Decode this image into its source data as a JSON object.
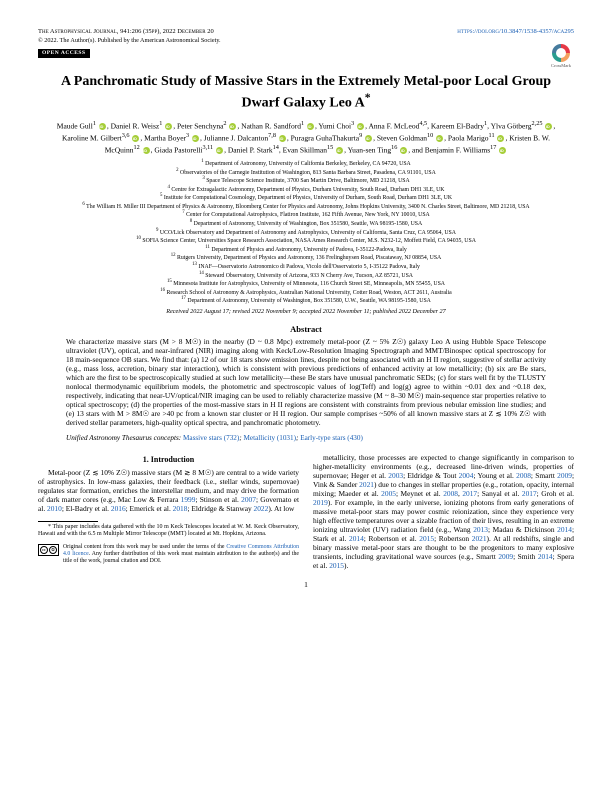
{
  "header": {
    "journal": "The Astrophysical Journal,",
    "citation": "941:206 (35pp), 2022 December 20",
    "doi_url": "https://doi.org/10.3847/1538-4357/aca295",
    "copyright": "© 2022. The Author(s). Published by the American Astronomical Society.",
    "open_access": "OPEN ACCESS",
    "crossmark": "CrossMark"
  },
  "title": "A Panchromatic Study of Massive Stars in the Extremely Metal-poor Local Group Dwarf Galaxy Leo A",
  "title_footnote": "*",
  "authors_html": "Maude Gull<sup>1</sup> <span class='orcid'></span>, Daniel R. Weisz<sup>1</sup> <span class='orcid'></span>, Peter Senchyna<sup>2</sup> <span class='orcid'></span>, Nathan R. Sandford<sup>1</sup> <span class='orcid'></span>, Yumi Choi<sup>3</sup> <span class='orcid'></span>, Anna F. McLeod<sup>4,5</sup>, Kareem El-Badry<sup>1</sup>, Ylva Götberg<sup>2,25</sup> <span class='orcid'></span>, Karoline M. Gilbert<sup>3,6</sup> <span class='orcid'></span>, Martha Boyer<sup>3</sup> <span class='orcid'></span>, Julianne J. Dalcanton<sup>7,8</sup> <span class='orcid'></span>, Puragra GuhaThakurta<sup>9</sup> <span class='orcid'></span>, Steven Goldman<sup>10</sup> <span class='orcid'></span>, Paola Marigo<sup>11</sup> <span class='orcid'></span>, Kristen B. W. McQuinn<sup>12</sup> <span class='orcid'></span>, Giada Pastorelli<sup>3,11</sup> <span class='orcid'></span>, Daniel P. Stark<sup>14</sup>, Evan Skillman<sup>15</sup> <span class='orcid'></span>, Yuan-sen Ting<sup>16</sup> <span class='orcid'></span>, and Benjamin F. Williams<sup>17</sup> <span class='orcid'></span>",
  "affiliations": "<sup>1</sup> Department of Astronomy, University of California Berkeley, Berkeley, CA 94720, USA<br><sup>2</sup> Observatories of the Carnegie Institution of Washington, 813 Santa Barbara Street, Pasadena, CA 91101, USA<br><sup>3</sup> Space Telescope Science Institute, 3700 San Martin Drive, Baltimore, MD 21218, USA<br><sup>4</sup> Centre for Extragalactic Astronomy, Department of Physics, Durham University, South Road, Durham DH1 3LE, UK<br><sup>5</sup> Institute for Computational Cosmology, Department of Physics, University of Durham, South Road, Durham DH1 3LE, UK<br><sup>6</sup> The William H. Miller III Department of Physics & Astronomy, Bloomberg Center for Physics and Astronomy, Johns Hopkins University, 3400 N. Charles Street, Baltimore, MD 21218, USA<br><sup>7</sup> Center for Computational Astrophysics, Flatiron Institute, 162 Fifth Avenue, New York, NY 10010, USA<br><sup>8</sup> Department of Astronomy, University of Washington, Box 351580, Seattle, WA 98195-1580, USA<br><sup>9</sup> UCO/Lick Observatory and Department of Astronomy and Astrophysics, University of California, Santa Cruz, CA 95064, USA<br><sup>10</sup> SOFIA Science Center, Universities Space Research Association, NASA Ames Research Center, M.S. N232-12, Moffett Field, CA 94035, USA<br><sup>11</sup> Department of Physics and Astronomy, University of Padova, I-35122-Padova, Italy<br><sup>12</sup> Rutgers University, Department of Physics and Astronomy, 136 Frelinghuysen Road, Piscataway, NJ 08854, USA<br><sup>13</sup> INAF—Osservatorio Astronomico di Padova, Vicolo dell'Osservatorio 5, I-35122 Padova, Italy<br><sup>14</sup> Steward Observatory, University of Arizona, 933 N Cherry Ave, Tucson, AZ 85721, USA<br><sup>15</sup> Minnesota Institute for Astrophysics, University of Minnesota, 116 Church Street SE, Minneapolis, MN 55455, USA<br><sup>16</sup> Research School of Astronomy & Astrophysics, Australian National University, Cotter Road, Weston, ACT 2611, Australia<br><sup>17</sup> Department of Astronomy, University of Washington, Box 351580, U.W., Seattle, WA 98195-1580, USA",
  "dates": "Received 2022 August 17; revised 2022 November 9; accepted 2022 November 11; published 2022 December 27",
  "abstract_heading": "Abstract",
  "abstract": "We characterize massive stars (M > 8 M☉) in the nearby (D ~ 0.8 Mpc) extremely metal-poor (Z ~ 5% Z☉) galaxy Leo A using Hubble Space Telescope ultraviolet (UV), optical, and near-infrared (NIR) imaging along with Keck/Low-Resolution Imaging Spectrograph and MMT/Binospec optical spectroscopy for 18 main-sequence OB stars. We find that: (a) 12 of our 18 stars show emission lines, despite not being associated with an H II region, suggestive of stellar activity (e.g., mass loss, accretion, binary star interaction), which is consistent with previous predictions of enhanced activity at low metallicity; (b) six are Be stars, which are the first to be spectroscopically studied at such low metallicity—these Be stars have unusual panchromatic SEDs; (c) for stars well fit by the TLUSTY nonlocal thermodynamic equilibrium models, the photometric and spectroscopic values of log(Teff) and log(g) agree to within ~0.01 dex and ~0.18 dex, respectively, indicating that near-UV/optical/NIR imaging can be used to reliably characterize massive (M ~ 8–30 M☉) main-sequence star properties relative to optical spectroscopy; (d) the properties of the most-massive stars in H II regions are consistent with constraints from previous nebular emission line studies; and (e) 13 stars with M > 8M☉ are >40 pc from a known star cluster or H II region. Our sample comprises ~50% of all known massive stars at Z ≲ 10% Z☉ with derived stellar parameters, high-quality optical spectra, and panchromatic photometry.",
  "uat_label": "Unified Astronomy Thesaurus concepts:",
  "uat_links": [
    {
      "text": "Massive stars (732)"
    },
    {
      "text": "Metallicity (1031)"
    },
    {
      "text": "Early-type stars (430)"
    }
  ],
  "section1_heading": "1. Introduction",
  "col1_p1": "Metal-poor (Z ≲ 10% Z☉) massive stars (M ≳ 8 M☉) are central to a wide variety of astrophysics. In low-mass galaxies, their feedback (i.e., stellar winds, supernovae) regulates star formation, enriches the interstellar medium, and may drive the formation of dark matter cores (e.g., Mac Low & Ferrara <a>1999</a>; Stinson et al. <a>2007</a>; Governato et al. <a>2010</a>; El-Badry et al. <a>2016</a>; Emerick et al. <a>2018</a>; Eldridge & Stanway <a>2022</a>). At low",
  "col2_p1": "metallicity, those processes are expected to change significantly in comparison to higher-metallicity environments (e.g., decreased line-driven winds, properties of supernovae; Heger et al. <a>2003</a>; Eldridge & Tout <a>2004</a>; Young et al. <a>2008</a>; Smartt <a>2009</a>; Vink & Sander <a>2021</a>) due to changes in stellar properties (e.g., rotation, opacity, internal mixing; Maeder et al. <a>2005</a>; Meynet et al. <a>2008</a>, <a>2017</a>; Sanyal et al. <a>2017</a>; Groh et al. <a>2019</a>). For example, in the early universe, ionizing photons from early generations of massive metal-poor stars may power cosmic reionization, since they experience very high effective temperatures over a sizable fraction of their lives, resulting in an extreme ionizing ultraviolet (UV) radiation field (e.g., Wang <a>2013</a>; Madau & Dickinson <a>2014</a>; Stark et al. <a>2014</a>; Robertson et al. <a>2015</a>; Robertson <a>2021</a>). At all redshifts, single and binary massive metal-poor stars are thought to be the progenitors to many explosive transients, including gravitational wave sources (e.g., Smartt <a>2009</a>; Smith <a>2014</a>; Spera et al. <a>2015</a>).",
  "footnote": "* This paper includes data gathered with the 10 m Keck Telescopes located at W. M. Keck Observatory, Hawaii and with the 6.5 m Multiple Mirror Telescope (MMT) located at Mt. Hopkins, Arizona.",
  "cc_text": "Original content from this work may be used under the terms of the <a>Creative Commons Attribution 4.0 licence</a>. Any further distribution of this work must maintain attribution to the author(s) and the title of the work, journal citation and DOI.",
  "page_num": "1"
}
